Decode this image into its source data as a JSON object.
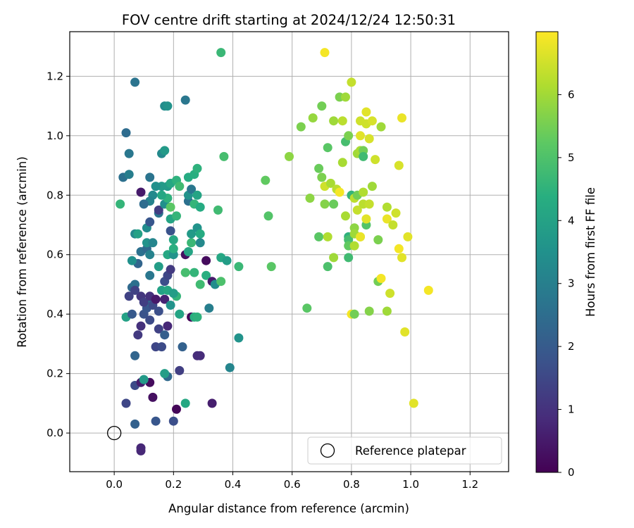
{
  "chart_data": {
    "type": "scatter",
    "title": "FOV centre drift starting at 2024/12/24 12:50:31",
    "xlabel": "Angular distance from reference (arcmin)",
    "ylabel": "Rotation from reference (arcmin)",
    "xlim": [
      -0.15,
      1.33
    ],
    "ylim": [
      -0.13,
      1.35
    ],
    "xticks": [
      "0.0",
      "0.2",
      "0.4",
      "0.6",
      "0.8",
      "1.0",
      "1.2"
    ],
    "yticks": [
      "0.0",
      "0.2",
      "0.4",
      "0.6",
      "0.8",
      "1.0",
      "1.2"
    ],
    "grid": true,
    "legend": {
      "position": "lower-right",
      "entries": [
        "Reference platepar"
      ]
    },
    "colorbar": {
      "label": "Hours from first FF file",
      "colormap": "viridis",
      "range": [
        0,
        7
      ],
      "ticks": [
        "0",
        "1",
        "2",
        "3",
        "4",
        "5",
        "6"
      ]
    },
    "reference_point": {
      "x": 0.0,
      "y": 0.0,
      "marker": "open-circle"
    },
    "columns": [
      "x",
      "y",
      "hours"
    ],
    "points": [
      [
        0.09,
        -0.05,
        0.8
      ],
      [
        0.09,
        -0.06,
        0.8
      ],
      [
        0.04,
        0.1,
        1.5
      ],
      [
        0.07,
        0.03,
        2.2
      ],
      [
        0.14,
        0.04,
        1.9
      ],
      [
        0.2,
        0.04,
        1.7
      ],
      [
        0.33,
        0.1,
        0.6
      ],
      [
        0.24,
        0.1,
        4.2
      ],
      [
        0.21,
        0.08,
        0.1
      ],
      [
        0.13,
        0.12,
        0.3
      ],
      [
        0.07,
        0.16,
        1.6
      ],
      [
        0.09,
        0.17,
        0.6
      ],
      [
        0.12,
        0.17,
        0.2
      ],
      [
        0.1,
        0.18,
        3.8
      ],
      [
        0.18,
        0.19,
        2.4
      ],
      [
        0.22,
        0.21,
        1.3
      ],
      [
        0.17,
        0.2,
        3.9
      ],
      [
        0.07,
        0.26,
        2.3
      ],
      [
        0.28,
        0.26,
        0.9
      ],
      [
        0.14,
        0.29,
        1.5
      ],
      [
        0.16,
        0.29,
        1.6
      ],
      [
        0.23,
        0.29,
        2.2
      ],
      [
        0.39,
        0.22,
        3.2
      ],
      [
        0.42,
        0.32,
        3.6
      ],
      [
        0.08,
        0.33,
        1.2
      ],
      [
        0.15,
        0.35,
        1.4
      ],
      [
        0.17,
        0.33,
        2.1
      ],
      [
        0.09,
        0.36,
        1.0
      ],
      [
        0.18,
        0.36,
        0.8
      ],
      [
        0.04,
        0.39,
        4.0
      ],
      [
        0.06,
        0.4,
        2.0
      ],
      [
        0.1,
        0.4,
        1.8
      ],
      [
        0.12,
        0.38,
        1.6
      ],
      [
        0.11,
        0.42,
        1.9
      ],
      [
        0.15,
        0.41,
        1.7
      ],
      [
        0.12,
        0.44,
        2.6
      ],
      [
        0.13,
        0.43,
        1.6
      ],
      [
        0.09,
        0.46,
        1.1
      ],
      [
        0.1,
        0.44,
        1.3
      ],
      [
        0.12,
        0.46,
        1.0
      ],
      [
        0.14,
        0.45,
        0.5
      ],
      [
        0.17,
        0.45,
        0.7
      ],
      [
        0.05,
        0.46,
        1.4
      ],
      [
        0.06,
        0.49,
        2.4
      ],
      [
        0.07,
        0.5,
        2.6
      ],
      [
        0.07,
        0.48,
        1.4
      ],
      [
        0.26,
        0.39,
        0.1
      ],
      [
        0.27,
        0.39,
        4.4
      ],
      [
        0.28,
        0.39,
        4.5
      ],
      [
        0.22,
        0.4,
        4.1
      ],
      [
        0.19,
        0.43,
        3.6
      ],
      [
        0.21,
        0.46,
        4.6
      ],
      [
        0.16,
        0.48,
        4.0
      ],
      [
        0.18,
        0.48,
        4.2
      ],
      [
        0.2,
        0.47,
        3.9
      ],
      [
        0.17,
        0.51,
        1.7
      ],
      [
        0.18,
        0.53,
        1.5
      ],
      [
        0.19,
        0.55,
        1.2
      ],
      [
        0.12,
        0.53,
        2.8
      ],
      [
        0.08,
        0.57,
        2.3
      ],
      [
        0.06,
        0.58,
        3.5
      ],
      [
        0.09,
        0.61,
        2.6
      ],
      [
        0.11,
        0.62,
        2.4
      ],
      [
        0.12,
        0.6,
        3.1
      ],
      [
        0.11,
        0.64,
        3.6
      ],
      [
        0.13,
        0.64,
        3.2
      ],
      [
        0.15,
        0.56,
        3.9
      ],
      [
        0.18,
        0.6,
        4.2
      ],
      [
        0.2,
        0.6,
        3.6
      ],
      [
        0.2,
        0.62,
        4.4
      ],
      [
        0.24,
        0.6,
        0.3
      ],
      [
        0.24,
        0.54,
        4.9
      ],
      [
        0.27,
        0.54,
        4.6
      ],
      [
        0.25,
        0.61,
        4.1
      ],
      [
        0.26,
        0.64,
        4.7
      ],
      [
        0.26,
        0.67,
        3.8
      ],
      [
        0.28,
        0.69,
        3.6
      ],
      [
        0.29,
        0.67,
        4.3
      ],
      [
        0.29,
        0.64,
        3.3
      ],
      [
        0.31,
        0.58,
        0.2
      ],
      [
        0.29,
        0.5,
        4.8
      ],
      [
        0.31,
        0.53,
        4.4
      ],
      [
        0.33,
        0.51,
        0.5
      ],
      [
        0.34,
        0.5,
        3.4
      ],
      [
        0.36,
        0.51,
        5.0
      ],
      [
        0.36,
        0.59,
        4.2
      ],
      [
        0.38,
        0.58,
        3.9
      ],
      [
        0.42,
        0.56,
        4.7
      ],
      [
        0.32,
        0.42,
        3.0
      ],
      [
        0.29,
        0.26,
        0.9
      ],
      [
        0.07,
        0.67,
        3.3
      ],
      [
        0.08,
        0.67,
        4.0
      ],
      [
        0.11,
        0.69,
        3.4
      ],
      [
        0.12,
        0.71,
        1.9
      ],
      [
        0.15,
        0.74,
        2.7
      ],
      [
        0.15,
        0.75,
        1.3
      ],
      [
        0.17,
        0.77,
        3.5
      ],
      [
        0.19,
        0.68,
        1.8
      ],
      [
        0.19,
        0.72,
        4.1
      ],
      [
        0.19,
        0.76,
        5.2
      ],
      [
        0.21,
        0.73,
        4.6
      ],
      [
        0.2,
        0.65,
        4.2
      ],
      [
        0.18,
        0.79,
        4.5
      ],
      [
        0.16,
        0.8,
        4.2
      ],
      [
        0.16,
        0.83,
        3.8
      ],
      [
        0.14,
        0.83,
        3.5
      ],
      [
        0.12,
        0.86,
        2.7
      ],
      [
        0.13,
        0.8,
        3.3
      ],
      [
        0.12,
        0.78,
        3.1
      ],
      [
        0.1,
        0.77,
        2.5
      ],
      [
        0.09,
        0.81,
        0.5
      ],
      [
        0.03,
        0.86,
        2.6
      ],
      [
        0.05,
        0.87,
        3.0
      ],
      [
        0.02,
        0.77,
        4.6
      ],
      [
        0.05,
        0.94,
        2.8
      ],
      [
        0.04,
        1.01,
        2.5
      ],
      [
        0.07,
        1.18,
        2.7
      ],
      [
        0.16,
        0.94,
        3.3
      ],
      [
        0.17,
        0.95,
        3.8
      ],
      [
        0.17,
        1.1,
        3.4
      ],
      [
        0.18,
        1.1,
        3.6
      ],
      [
        0.24,
        1.12,
        2.8
      ],
      [
        0.18,
        0.83,
        3.8
      ],
      [
        0.19,
        0.84,
        4.2
      ],
      [
        0.21,
        0.85,
        4.5
      ],
      [
        0.22,
        0.83,
        4.8
      ],
      [
        0.25,
        0.78,
        2.6
      ],
      [
        0.25,
        0.8,
        3.6
      ],
      [
        0.26,
        0.82,
        2.8
      ],
      [
        0.25,
        0.86,
        4.3
      ],
      [
        0.27,
        0.87,
        4.4
      ],
      [
        0.28,
        0.8,
        4.1
      ],
      [
        0.27,
        0.77,
        4.6
      ],
      [
        0.29,
        0.76,
        4.3
      ],
      [
        0.28,
        0.89,
        4.5
      ],
      [
        0.35,
        0.75,
        4.8
      ],
      [
        0.37,
        0.93,
        4.9
      ],
      [
        0.36,
        1.28,
        4.7
      ],
      [
        0.51,
        0.85,
        5.3
      ],
      [
        0.52,
        0.73,
        5.1
      ],
      [
        0.53,
        0.56,
        5.2
      ],
      [
        0.59,
        0.93,
        5.8
      ],
      [
        0.65,
        0.42,
        5.2
      ],
      [
        0.63,
        1.03,
        5.6
      ],
      [
        0.66,
        0.79,
        5.8
      ],
      [
        0.67,
        1.06,
        5.9
      ],
      [
        0.69,
        0.89,
        5.4
      ],
      [
        0.7,
        1.1,
        5.5
      ],
      [
        0.7,
        0.86,
        5.6
      ],
      [
        0.69,
        0.66,
        5.2
      ],
      [
        0.71,
        0.83,
        6.5
      ],
      [
        0.71,
        0.77,
        5.7
      ],
      [
        0.72,
        0.96,
        5.2
      ],
      [
        0.72,
        0.66,
        6.2
      ],
      [
        0.72,
        0.56,
        5.0
      ],
      [
        0.73,
        0.84,
        6.1
      ],
      [
        0.74,
        0.77,
        5.4
      ],
      [
        0.74,
        0.59,
        6.0
      ],
      [
        0.74,
        1.05,
        6.0
      ],
      [
        0.75,
        0.82,
        6.3
      ],
      [
        0.76,
        0.81,
        6.9
      ],
      [
        0.76,
        1.13,
        5.6
      ],
      [
        0.77,
        0.91,
        6.1
      ],
      [
        0.77,
        1.05,
        6.3
      ],
      [
        0.78,
        1.13,
        6.0
      ],
      [
        0.78,
        0.98,
        4.9
      ],
      [
        0.78,
        0.73,
        6.1
      ],
      [
        0.79,
        1.0,
        5.6
      ],
      [
        0.79,
        0.66,
        4.5
      ],
      [
        0.79,
        0.65,
        4.9
      ],
      [
        0.79,
        0.63,
        5.3
      ],
      [
        0.79,
        0.59,
        4.8
      ],
      [
        0.8,
        0.8,
        4.6
      ],
      [
        0.8,
        0.4,
        6.9
      ],
      [
        0.8,
        1.18,
        6.4
      ],
      [
        0.81,
        0.4,
        5.5
      ],
      [
        0.81,
        0.63,
        6.2
      ],
      [
        0.81,
        0.69,
        5.8
      ],
      [
        0.81,
        0.67,
        6.0
      ],
      [
        0.81,
        0.79,
        6.3
      ],
      [
        0.82,
        0.94,
        6.0
      ],
      [
        0.82,
        0.8,
        5.5
      ],
      [
        0.82,
        0.75,
        6.4
      ],
      [
        0.83,
        0.66,
        6.2
      ],
      [
        0.83,
        0.95,
        6.1
      ],
      [
        0.83,
        0.66,
        6.8
      ],
      [
        0.83,
        1.05,
        6.5
      ],
      [
        0.83,
        1.0,
        6.7
      ],
      [
        0.84,
        0.81,
        6.2
      ],
      [
        0.84,
        0.95,
        5.5
      ],
      [
        0.84,
        0.93,
        4.8
      ],
      [
        0.84,
        0.77,
        6.3
      ],
      [
        0.85,
        1.08,
        6.7
      ],
      [
        0.85,
        1.04,
        6.5
      ],
      [
        0.85,
        0.7,
        5.1
      ],
      [
        0.85,
        0.72,
        6.7
      ],
      [
        0.86,
        0.99,
        6.6
      ],
      [
        0.86,
        0.77,
        6.4
      ],
      [
        0.86,
        0.41,
        5.7
      ],
      [
        0.87,
        1.05,
        6.6
      ],
      [
        0.87,
        0.83,
        6.0
      ],
      [
        0.88,
        0.92,
        6.5
      ],
      [
        0.89,
        0.65,
        5.6
      ],
      [
        0.89,
        0.51,
        5.5
      ],
      [
        0.9,
        1.03,
        6.0
      ],
      [
        0.9,
        0.52,
        6.9
      ],
      [
        0.92,
        0.76,
        6.2
      ],
      [
        0.92,
        0.72,
        6.8
      ],
      [
        0.92,
        0.41,
        6.0
      ],
      [
        0.93,
        0.47,
        6.5
      ],
      [
        0.94,
        0.7,
        6.4
      ],
      [
        0.95,
        0.74,
        6.5
      ],
      [
        0.96,
        0.9,
        6.6
      ],
      [
        0.96,
        0.62,
        6.9
      ],
      [
        0.97,
        0.59,
        6.7
      ],
      [
        0.97,
        1.06,
        6.8
      ],
      [
        0.98,
        0.34,
        6.7
      ],
      [
        0.99,
        0.66,
        6.7
      ],
      [
        1.01,
        0.1,
        6.7
      ],
      [
        1.06,
        0.48,
        6.9
      ],
      [
        0.71,
        1.28,
        6.9
      ]
    ]
  }
}
